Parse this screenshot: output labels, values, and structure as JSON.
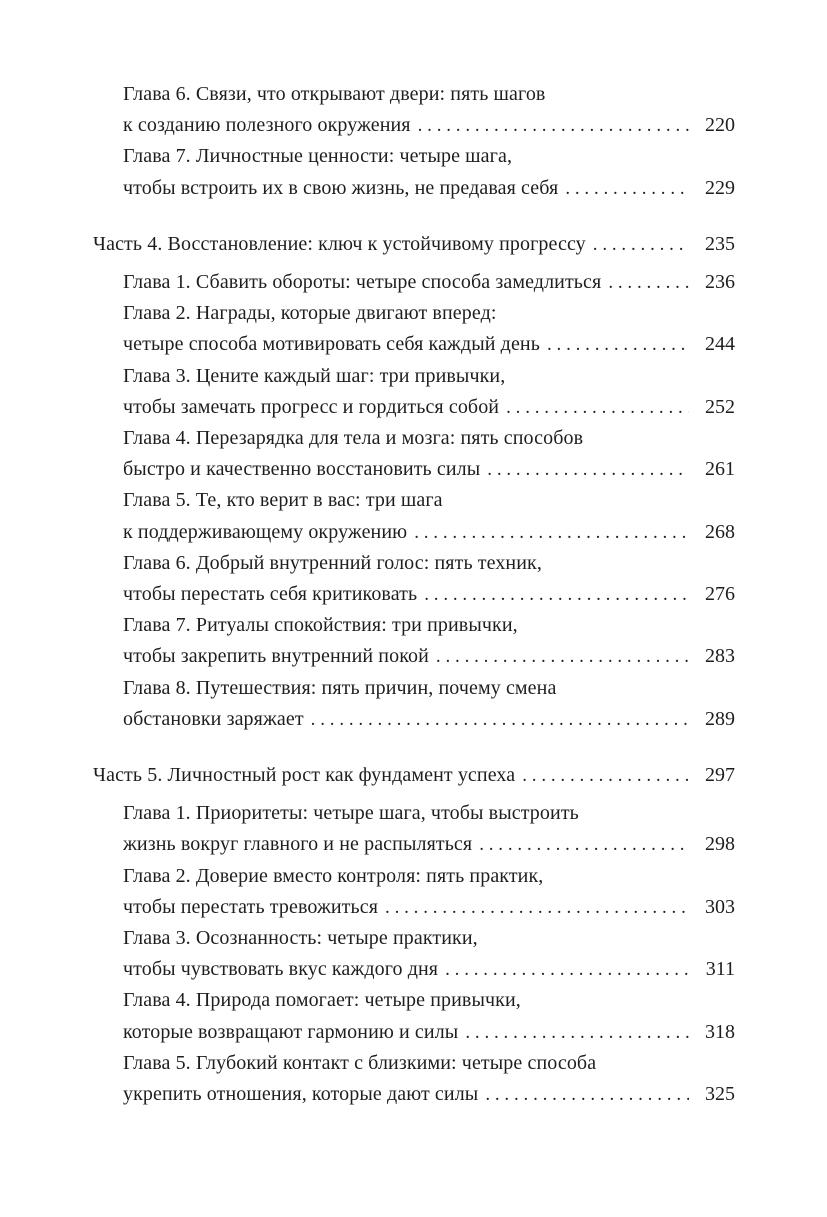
{
  "page": {
    "background_color": "#ffffff",
    "text_color": "#1e1e1e"
  },
  "toc": {
    "dot_leader_char": ".",
    "sections": [
      {
        "part": null,
        "chapters": [
          {
            "lines": [
              "Глава 6. Связи, что открывают двери: пять шагов",
              "к созданию полезного окружения"
            ],
            "page": "220"
          },
          {
            "lines": [
              "Глава 7. Личностные ценности: четыре шага,",
              "чтобы встроить их в свою жизнь, не предавая себя"
            ],
            "page": "229"
          }
        ]
      },
      {
        "part": {
          "lines": [
            "Часть 4. Восстановление: ключ к устойчивому прогрессу"
          ],
          "page": "235"
        },
        "chapters": [
          {
            "lines": [
              "Глава 1. Сбавить обороты: четыре способа замедлиться"
            ],
            "page": "236"
          },
          {
            "lines": [
              "Глава 2. Награды, которые двигают вперед:",
              "четыре способа мотивировать себя каждый день"
            ],
            "page": "244"
          },
          {
            "lines": [
              "Глава 3. Цените каждый шаг: три привычки,",
              "чтобы замечать прогресс и гордиться собой"
            ],
            "page": "252"
          },
          {
            "lines": [
              "Глава 4. Перезарядка для тела и мозга: пять способов",
              "быстро и качественно восстановить силы"
            ],
            "page": "261"
          },
          {
            "lines": [
              "Глава 5. Те, кто верит в вас: три шага",
              "к поддерживающему окружению"
            ],
            "page": "268"
          },
          {
            "lines": [
              "Глава 6. Добрый внутренний голос: пять техник,",
              "чтобы перестать себя критиковать"
            ],
            "page": "276"
          },
          {
            "lines": [
              "Глава 7. Ритуалы спокойствия: три привычки,",
              "чтобы закрепить внутренний покой"
            ],
            "page": "283"
          },
          {
            "lines": [
              "Глава 8. Путешествия: пять причин, почему смена",
              "обстановки заряжает"
            ],
            "page": "289"
          }
        ]
      },
      {
        "part": {
          "lines": [
            "Часть 5. Личностный рост как фундамент успеха"
          ],
          "page": "297"
        },
        "chapters": [
          {
            "lines": [
              "Глава 1. Приоритеты: четыре шага, чтобы выстроить",
              "жизнь вокруг главного и не распыляться"
            ],
            "page": "298"
          },
          {
            "lines": [
              "Глава 2. Доверие вместо контроля: пять практик,",
              "чтобы перестать тревожиться"
            ],
            "page": "303"
          },
          {
            "lines": [
              "Глава 3. Осознанность: четыре практики,",
              "чтобы чувствовать вкус каждого дня"
            ],
            "page": "311"
          },
          {
            "lines": [
              "Глава 4. Природа помогает: четыре привычки,",
              "которые возвращают гармонию и силы"
            ],
            "page": "318"
          },
          {
            "lines": [
              "Глава 5. Глубокий контакт с близкими: четыре способа",
              "укрепить отношения, которые дают силы"
            ],
            "page": "325"
          }
        ]
      }
    ]
  }
}
